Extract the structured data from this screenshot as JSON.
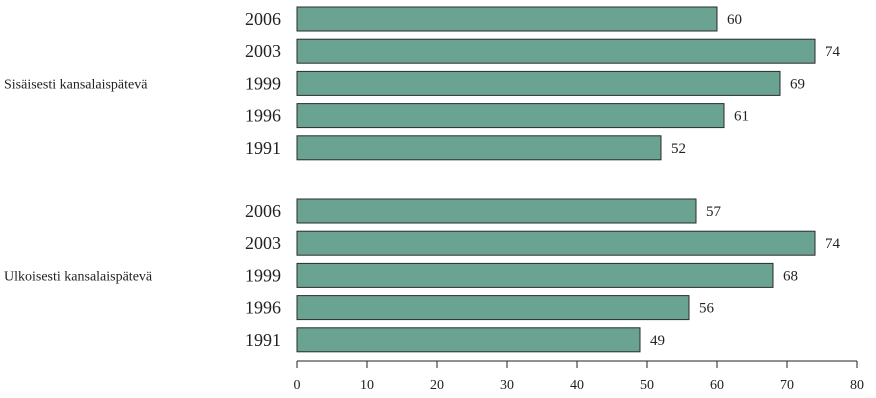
{
  "chart_data": {
    "type": "bar",
    "orientation": "horizontal",
    "groups": [
      {
        "name": "Sisäisesti kansalaispätevä",
        "categories": [
          "2006",
          "2003",
          "1999",
          "1996",
          "1991"
        ],
        "values": [
          60,
          74,
          69,
          61,
          52
        ]
      },
      {
        "name": "Ulkoisesti kansalaispätevä",
        "categories": [
          "2006",
          "2003",
          "1999",
          "1996",
          "1991"
        ],
        "values": [
          57,
          74,
          68,
          56,
          49
        ]
      }
    ],
    "xlim": [
      0,
      80
    ],
    "xticks": [
      0,
      10,
      20,
      30,
      40,
      50,
      60,
      70,
      80
    ],
    "bar_color": "#6ba393",
    "grid": false,
    "legend": "none"
  }
}
